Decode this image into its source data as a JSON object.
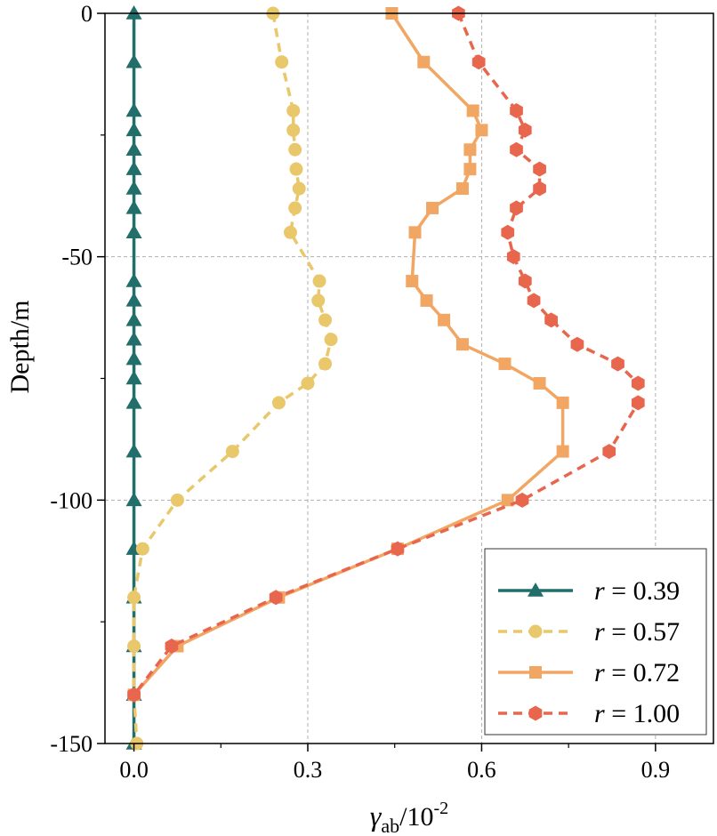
{
  "chart_data": {
    "type": "line",
    "title": "",
    "xlabel": "γ",
    "xlabel_sub": "ab",
    "xlabel_unit": "/10",
    "xlabel_sup": "-2",
    "ylabel": "Depth/m",
    "xlim": [
      -0.05,
      1.0
    ],
    "ylim": [
      -150,
      0
    ],
    "xticks": [
      0.0,
      0.3,
      0.6,
      0.9
    ],
    "xtick_labels": [
      "0.0",
      "0.3",
      "0.6",
      "0.9"
    ],
    "yticks": [
      0,
      -50,
      -100,
      -150
    ],
    "ytick_labels": [
      "0",
      "-50",
      "-100",
      "-150"
    ],
    "grid": true,
    "legend_position": "bottom-right",
    "series": [
      {
        "name": "r = 0.39",
        "legend_var": "r",
        "legend_value": " = 0.39",
        "color": "#216e6b",
        "marker": "triangle",
        "dashed": false,
        "depth": [
          0,
          -10,
          -20,
          -24,
          -28,
          -32,
          -36,
          -40,
          -45,
          -55,
          -59,
          -63,
          -67,
          -71,
          -75,
          -80,
          -90,
          -100,
          -110,
          -120,
          -130,
          -140,
          -150
        ],
        "values": [
          0,
          0,
          0,
          0,
          0,
          0,
          0,
          0,
          0,
          0,
          0,
          0,
          0,
          0,
          0,
          0,
          0,
          0,
          0,
          0,
          0,
          0,
          0
        ]
      },
      {
        "name": "r = 0.57",
        "legend_var": "r",
        "legend_value": " = 0.57",
        "color": "#e8c86a",
        "marker": "circle",
        "dashed": true,
        "depth": [
          0,
          -10,
          -20,
          -24,
          -28,
          -32,
          -36,
          -40,
          -45,
          -55,
          -59,
          -63,
          -67,
          -72,
          -76,
          -80,
          -90,
          -100,
          -110,
          -120,
          -130,
          -140,
          -150
        ],
        "values": [
          0.24,
          0.255,
          0.275,
          0.275,
          0.278,
          0.28,
          0.285,
          0.278,
          0.27,
          0.32,
          0.318,
          0.33,
          0.34,
          0.33,
          0.3,
          0.25,
          0.17,
          0.075,
          0.015,
          0.0,
          0.0,
          0.0,
          0.005
        ]
      },
      {
        "name": "r = 0.72",
        "legend_var": "r",
        "legend_value": " = 0.72",
        "color": "#f2a663",
        "marker": "square",
        "dashed": false,
        "depth": [
          0,
          -10,
          -20,
          -24,
          -28,
          -32,
          -36,
          -40,
          -45,
          -55,
          -59,
          -63,
          -68,
          -72,
          -76,
          -80,
          -90,
          -100,
          -110,
          -120,
          -130,
          -140
        ],
        "values": [
          0.445,
          0.5,
          0.585,
          0.6,
          0.58,
          0.58,
          0.567,
          0.515,
          0.485,
          0.48,
          0.505,
          0.535,
          0.567,
          0.64,
          0.7,
          0.74,
          0.74,
          0.645,
          0.455,
          0.25,
          0.075,
          0.0
        ]
      },
      {
        "name": "r = 1.00",
        "legend_var": "r",
        "legend_value": " = 1.00",
        "color": "#e8664e",
        "marker": "hexagon",
        "dashed": true,
        "depth": [
          0,
          -10,
          -20,
          -24,
          -28,
          -32,
          -36,
          -40,
          -45,
          -50,
          -55,
          -59,
          -63,
          -68,
          -72,
          -76,
          -80,
          -90,
          -100,
          -110,
          -120,
          -130,
          -140
        ],
        "values": [
          0.56,
          0.595,
          0.66,
          0.675,
          0.66,
          0.7,
          0.7,
          0.66,
          0.645,
          0.655,
          0.675,
          0.69,
          0.72,
          0.765,
          0.835,
          0.87,
          0.87,
          0.82,
          0.67,
          0.455,
          0.245,
          0.065,
          0.0
        ]
      }
    ]
  }
}
